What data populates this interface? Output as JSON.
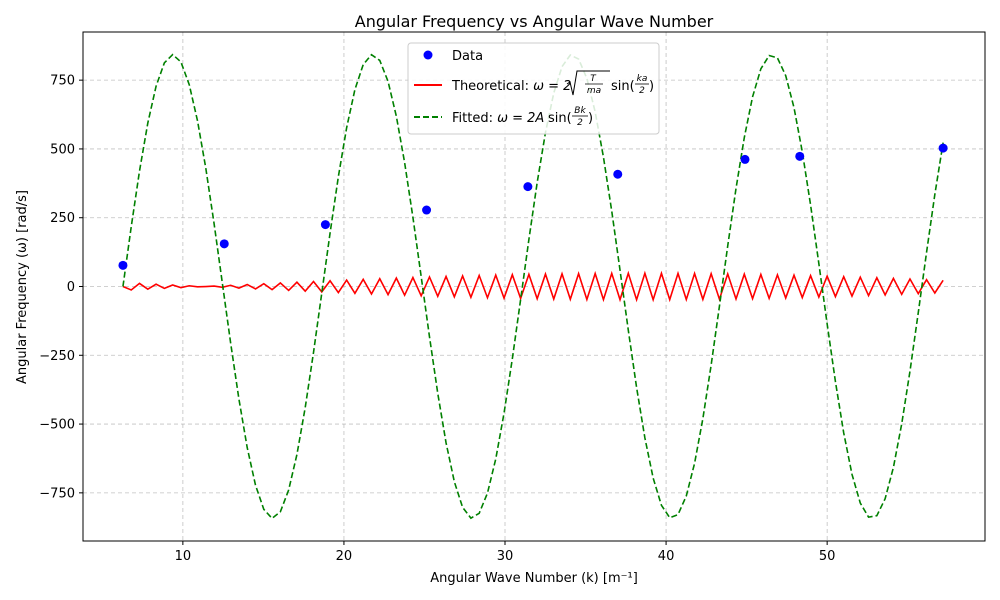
{
  "chart_data": {
    "type": "scatter",
    "title": "Angular Frequency vs Angular Wave Number",
    "xlabel": "Angular Wave Number (k) [m⁻¹]",
    "ylabel": "Angular Frequency (ω) [rad/s]",
    "xlim": [
      3.8,
      59.8
    ],
    "ylim": [
      -925,
      925
    ],
    "xticks": [
      10,
      20,
      30,
      40,
      50
    ],
    "yticks": [
      -750,
      -500,
      -250,
      0,
      250,
      500,
      750
    ],
    "xtick_labels": [
      "10",
      "20",
      "30",
      "40",
      "50"
    ],
    "ytick_labels": [
      "−750",
      "−500",
      "−250",
      "0",
      "250",
      "500",
      "750"
    ],
    "grid": true,
    "legend_position": "top-center",
    "series": [
      {
        "name": "Data",
        "kind": "scatter",
        "color": "#0000ff",
        "x": [
          6.28,
          12.57,
          18.85,
          25.13,
          31.42,
          37.0,
          44.9,
          48.3,
          57.2
        ],
        "y": [
          77,
          155,
          225,
          278,
          363,
          408,
          462,
          473,
          503
        ]
      },
      {
        "name": "Theoretical",
        "kind": "line",
        "color": "#ff0000",
        "dash": "solid",
        "formula": "ω = 2√(T/ma) sin(ka/2)",
        "x_range": [
          6.28,
          57.2
        ],
        "points": 100,
        "approx_amplitude": 48
      },
      {
        "name": "Fitted",
        "kind": "line",
        "color": "#008000",
        "dash": "dashed",
        "formula": "ω = 2A sin(Bk/2)",
        "x_range": [
          6.28,
          57.2
        ],
        "points": 100,
        "amplitude": 843,
        "period_k": 12.4,
        "phase_zero_k": 6.28
      }
    ],
    "legend": [
      {
        "label": "Data",
        "color": "#0000ff",
        "kind": "marker"
      },
      {
        "label": "Theoretical: ",
        "formula_parts": [
          "ω = 2",
          "T",
          "ma",
          "sin(",
          "ka",
          "2",
          ")"
        ],
        "color": "#ff0000",
        "kind": "solid"
      },
      {
        "label": "Fitted: ",
        "formula_parts": [
          "ω = 2A",
          "sin(",
          "Bk",
          "2",
          ")"
        ],
        "color": "#008000",
        "kind": "dashed"
      }
    ]
  }
}
